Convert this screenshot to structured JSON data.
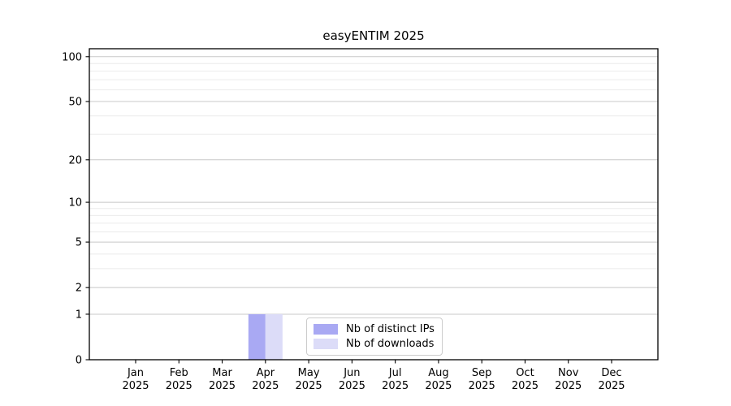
{
  "chart_data": {
    "type": "bar",
    "title": "easyENTIM 2025",
    "categories": [
      "Jan",
      "Feb",
      "Mar",
      "Apr",
      "May",
      "Jun",
      "Jul",
      "Aug",
      "Sep",
      "Oct",
      "Nov",
      "Dec"
    ],
    "category_year": "2025",
    "series": [
      {
        "name": "Nb of distinct IPs",
        "color": "#a9a9f3",
        "values": [
          0,
          0,
          0,
          1,
          0,
          0,
          0,
          0,
          0,
          0,
          0,
          0
        ]
      },
      {
        "name": "Nb of downloads",
        "color": "#dcdcf8",
        "values": [
          0,
          0,
          0,
          1,
          0,
          0,
          0,
          0,
          0,
          0,
          0,
          0
        ]
      }
    ],
    "xlabel": "",
    "ylabel": "",
    "yscale": "log1p",
    "ylim": [
      0,
      113
    ],
    "yticks": [
      0,
      1,
      2,
      5,
      10,
      20,
      50,
      100
    ],
    "minor_yticks": [
      3,
      4,
      6,
      7,
      8,
      9,
      30,
      40,
      60,
      70,
      80,
      90
    ],
    "grid": "horizontal-only",
    "legend_position": "inside-bottom-center"
  },
  "colors": {
    "bar_distinct_ips": "#a9a9f3",
    "bar_downloads": "#dcdcf8",
    "grid_major": "#c8c8c8",
    "grid_minor": "#ebebeb",
    "axis": "#000000",
    "legend_border": "#cccccc",
    "background": "#ffffff"
  }
}
